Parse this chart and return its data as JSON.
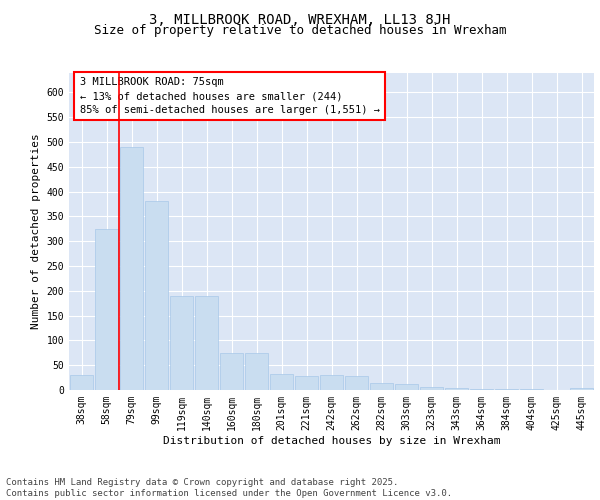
{
  "title": "3, MILLBROOK ROAD, WREXHAM, LL13 8JH",
  "subtitle": "Size of property relative to detached houses in Wrexham",
  "xlabel": "Distribution of detached houses by size in Wrexham",
  "ylabel": "Number of detached properties",
  "bar_color": "#c9ddf0",
  "bar_edge_color": "#a8c8e8",
  "background_color": "#dce6f5",
  "grid_color": "#ffffff",
  "categories": [
    "38sqm",
    "58sqm",
    "79sqm",
    "99sqm",
    "119sqm",
    "140sqm",
    "160sqm",
    "180sqm",
    "201sqm",
    "221sqm",
    "242sqm",
    "262sqm",
    "282sqm",
    "303sqm",
    "323sqm",
    "343sqm",
    "364sqm",
    "384sqm",
    "404sqm",
    "425sqm",
    "445sqm"
  ],
  "values": [
    30,
    325,
    490,
    380,
    190,
    190,
    75,
    75,
    32,
    28,
    30,
    28,
    14,
    13,
    7,
    4,
    3,
    2,
    2,
    1,
    4
  ],
  "ylim": [
    0,
    640
  ],
  "yticks": [
    0,
    50,
    100,
    150,
    200,
    250,
    300,
    350,
    400,
    450,
    500,
    550,
    600
  ],
  "annotation_title": "3 MILLBROOK ROAD: 75sqm",
  "annotation_line1": "← 13% of detached houses are smaller (244)",
  "annotation_line2": "85% of semi-detached houses are larger (1,551) →",
  "vline_x": 1.5,
  "footer": "Contains HM Land Registry data © Crown copyright and database right 2025.\nContains public sector information licensed under the Open Government Licence v3.0.",
  "title_fontsize": 10,
  "subtitle_fontsize": 9,
  "xlabel_fontsize": 8,
  "ylabel_fontsize": 8,
  "tick_fontsize": 7,
  "annotation_fontsize": 7.5,
  "footer_fontsize": 6.5
}
